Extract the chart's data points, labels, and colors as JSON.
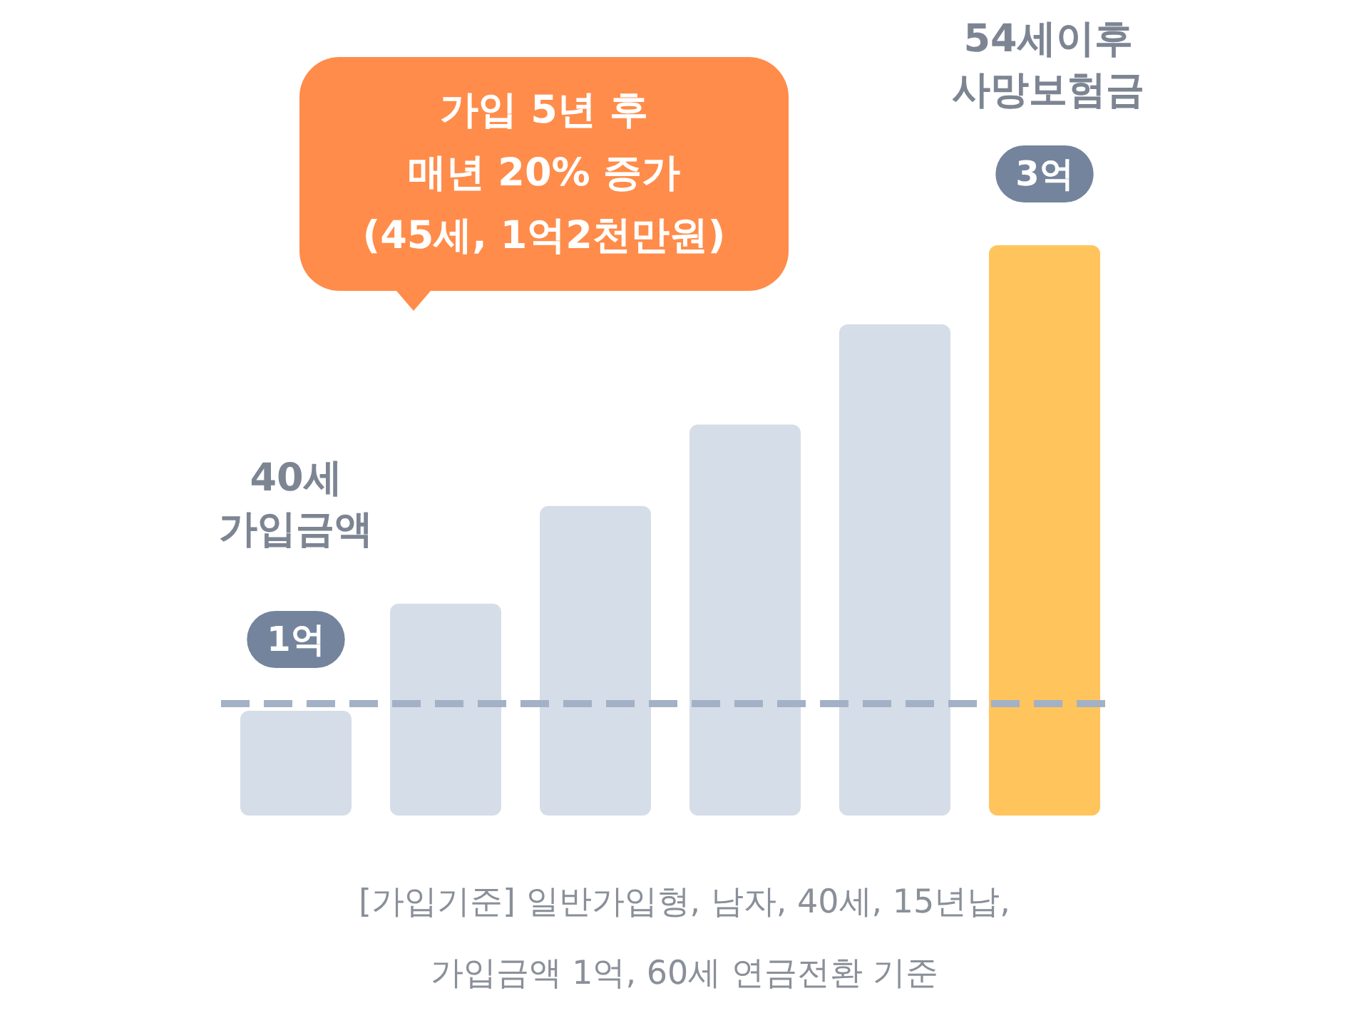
{
  "chart_data": {
    "type": "bar",
    "ylim": [
      0.55,
      3
    ],
    "categories": [
      null,
      null,
      null,
      null,
      null,
      null
    ],
    "values": [
      1,
      1.46,
      1.88,
      2.23,
      2.66,
      3
    ],
    "colors": [
      "#d5dde8",
      "#d5dde8",
      "#d5dde8",
      "#d5dde8",
      "#d5dde8",
      "#ffc55c"
    ],
    "value_labels": [
      "1억",
      null,
      null,
      null,
      null,
      "3억"
    ],
    "ref_lines": [
      {
        "axis": "y",
        "value": 1.03,
        "color": "#a3b1c6",
        "line_style": "dashed"
      }
    ],
    "annotations": [
      "가입 5년 후\n매년 20% 증가\n(45세, 1억2천만원)",
      "40세\n가입금액",
      "54세이후\n사망보험금",
      "[가입기준] 일반가입형, 남자, 40세, 15년납,\n가입금액 1억, 60세 연금전환 기준"
    ],
    "tick_labels": false
  }
}
